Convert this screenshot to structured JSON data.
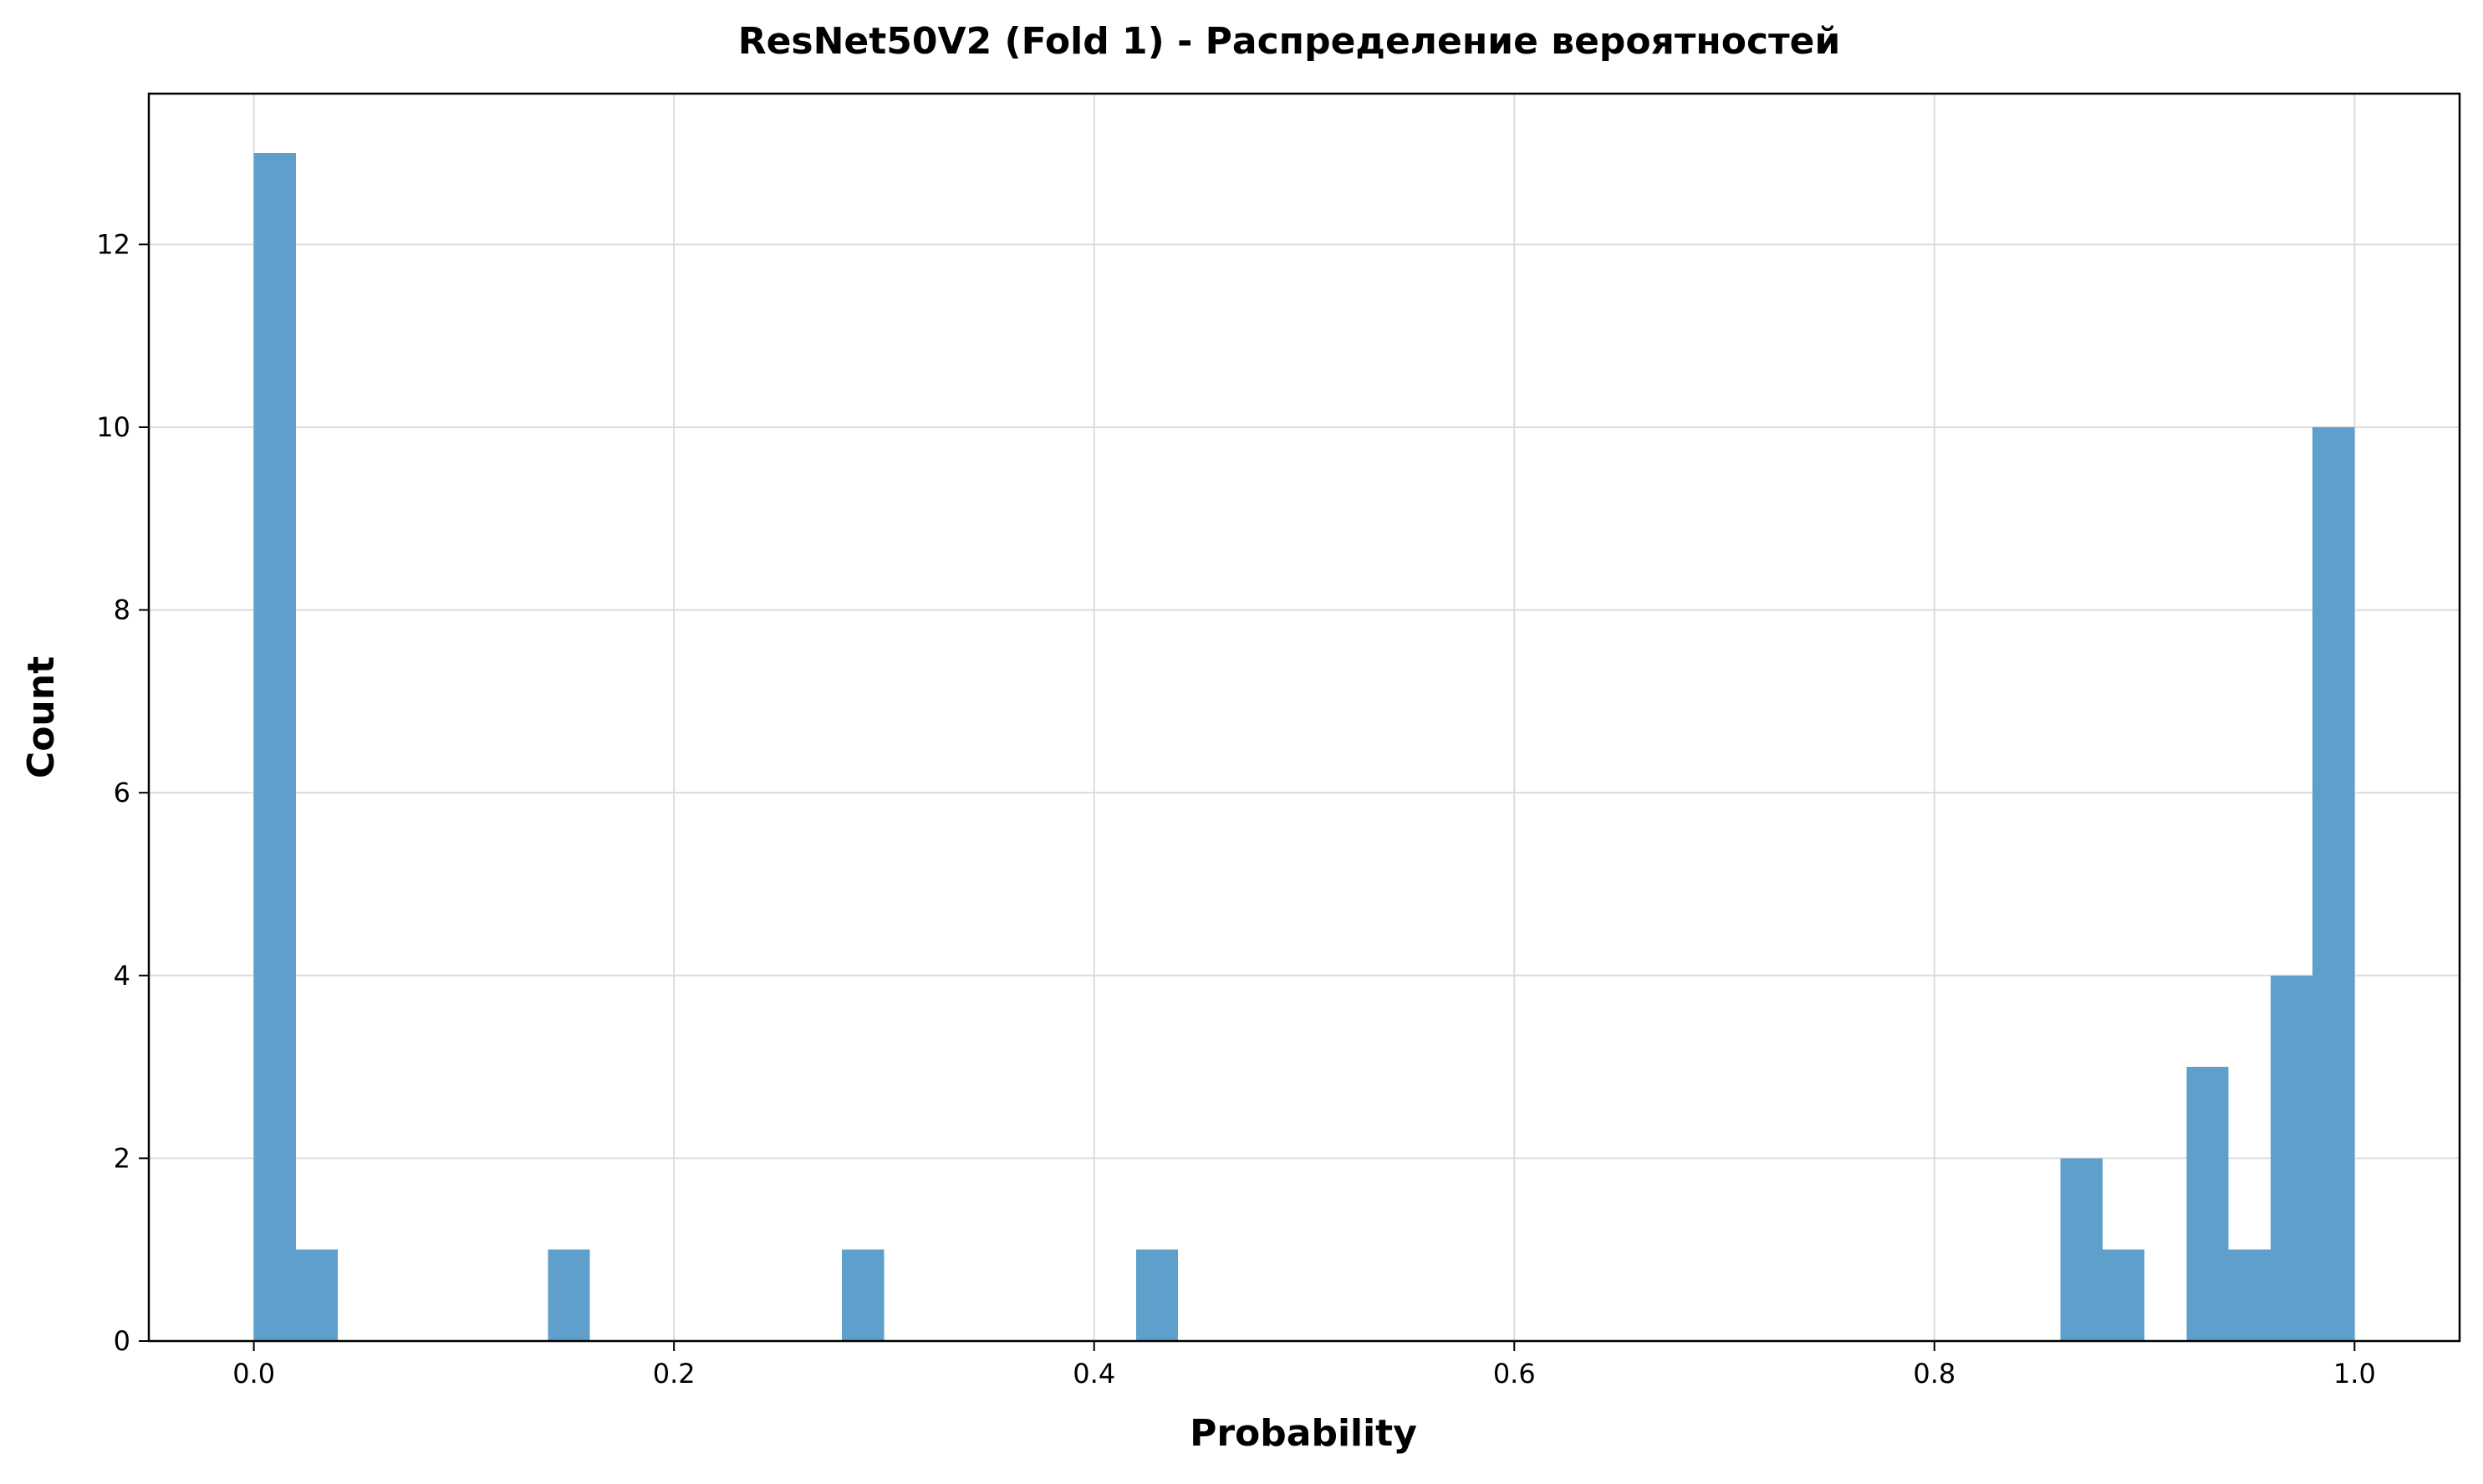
{
  "chart_data": {
    "type": "bar",
    "title": "ResNet50V2 (Fold 1) - Распределение вероятностей",
    "xlabel": "Probability",
    "ylabel": "Count",
    "xlim": [
      -0.05,
      1.05
    ],
    "ylim": [
      0,
      13.65
    ],
    "xticks": [
      0.0,
      0.2,
      0.4,
      0.6,
      0.8,
      1.0
    ],
    "xtick_labels": [
      "0.0",
      "0.2",
      "0.4",
      "0.6",
      "0.8",
      "1.0"
    ],
    "yticks": [
      0,
      2,
      4,
      6,
      8,
      10,
      12
    ],
    "ytick_labels": [
      "0",
      "2",
      "4",
      "6",
      "8",
      "10",
      "12"
    ],
    "grid": true,
    "bar_color": "#5f9fcb",
    "bins": [
      {
        "x0": 0.0,
        "x1": 0.02,
        "count": 13
      },
      {
        "x0": 0.02,
        "x1": 0.04,
        "count": 1
      },
      {
        "x0": 0.14,
        "x1": 0.16,
        "count": 1
      },
      {
        "x0": 0.28,
        "x1": 0.3,
        "count": 1
      },
      {
        "x0": 0.42,
        "x1": 0.44,
        "count": 1
      },
      {
        "x0": 0.86,
        "x1": 0.88,
        "count": 2
      },
      {
        "x0": 0.88,
        "x1": 0.9,
        "count": 1
      },
      {
        "x0": 0.92,
        "x1": 0.94,
        "count": 3
      },
      {
        "x0": 0.94,
        "x1": 0.96,
        "count": 1
      },
      {
        "x0": 0.96,
        "x1": 0.98,
        "count": 4
      },
      {
        "x0": 0.98,
        "x1": 1.0,
        "count": 10
      }
    ]
  }
}
